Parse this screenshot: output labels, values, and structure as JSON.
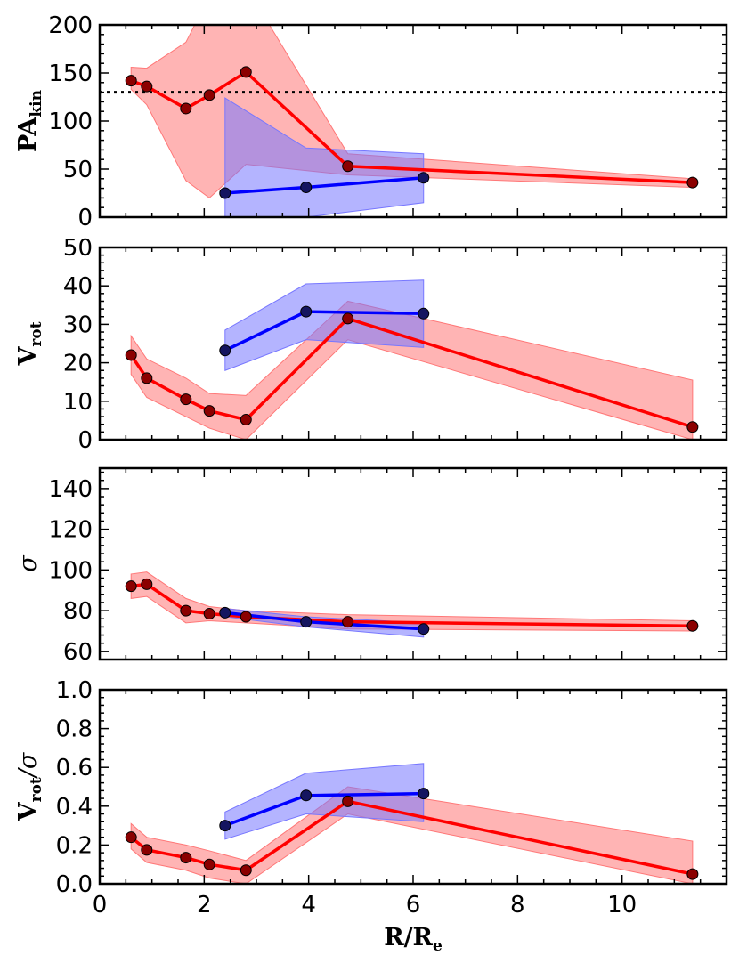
{
  "chart_data": [
    {
      "type": "line",
      "ylabel_main": "PA",
      "ylabel_sub": "kin",
      "xlim": [
        0,
        12
      ],
      "ylim": [
        0,
        200
      ],
      "yticks": [
        0,
        50,
        100,
        150,
        200
      ],
      "reference_line": 130,
      "series": [
        {
          "name": "red",
          "color": "#ff0000",
          "marker_color": "#8b0000",
          "fill_color": "#ff7777",
          "x": [
            0.6,
            0.9,
            1.65,
            2.1,
            2.8,
            4.75,
            11.35
          ],
          "values": [
            142,
            136,
            113,
            127,
            151,
            53,
            36
          ],
          "band_upper": [
            156,
            155,
            182,
            230,
            240,
            66,
            40
          ],
          "band_lower": [
            133,
            117,
            38,
            20,
            55,
            44,
            31
          ]
        },
        {
          "name": "blue",
          "color": "#0000ff",
          "marker_color": "#151560",
          "fill_color": "#7777ff",
          "x": [
            2.4,
            3.95,
            6.2
          ],
          "values": [
            25,
            31,
            41
          ],
          "band_upper": [
            124,
            72,
            66
          ],
          "band_lower": [
            0,
            0,
            15
          ]
        }
      ]
    },
    {
      "type": "line",
      "ylabel_main": "V",
      "ylabel_sub": "rot",
      "xlim": [
        0,
        12
      ],
      "ylim": [
        0,
        50
      ],
      "yticks": [
        0,
        10,
        20,
        30,
        40,
        50
      ],
      "series": [
        {
          "name": "red",
          "color": "#ff0000",
          "marker_color": "#8b0000",
          "fill_color": "#ff7777",
          "x": [
            0.6,
            0.9,
            1.65,
            2.1,
            2.8,
            4.75,
            11.35
          ],
          "values": [
            22,
            16,
            10.5,
            7.5,
            5.2,
            31.5,
            3.3
          ],
          "band_upper": [
            27,
            21,
            16,
            12,
            11.5,
            36,
            15.5
          ],
          "band_lower": [
            17,
            11,
            6,
            3,
            0,
            26,
            0
          ]
        },
        {
          "name": "blue",
          "color": "#0000ff",
          "marker_color": "#151560",
          "fill_color": "#7777ff",
          "x": [
            2.4,
            3.95,
            6.2
          ],
          "values": [
            23.2,
            33.3,
            32.8
          ],
          "band_upper": [
            28.5,
            40.5,
            41.5
          ],
          "band_lower": [
            18,
            26,
            24
          ]
        }
      ]
    },
    {
      "type": "line",
      "ylabel_main": "σ",
      "ylabel_sub": "",
      "xlim": [
        0,
        12
      ],
      "ylim": [
        56,
        150
      ],
      "yticks": [
        60,
        80,
        100,
        120,
        140
      ],
      "series": [
        {
          "name": "red",
          "color": "#ff0000",
          "marker_color": "#8b0000",
          "fill_color": "#ff7777",
          "x": [
            0.6,
            0.9,
            1.65,
            2.1,
            2.8,
            4.75,
            11.35
          ],
          "values": [
            92,
            93,
            80,
            78.5,
            77,
            74.5,
            72.5
          ],
          "band_upper": [
            98,
            99,
            86,
            82,
            80,
            78,
            75
          ],
          "band_lower": [
            86,
            87,
            74,
            75,
            74,
            71,
            70
          ]
        },
        {
          "name": "blue",
          "color": "#0000ff",
          "marker_color": "#151560",
          "fill_color": "#7777ff",
          "x": [
            2.4,
            3.95,
            6.2
          ],
          "values": [
            79,
            74.5,
            71
          ],
          "band_upper": [
            81,
            77,
            74
          ],
          "band_lower": [
            77,
            72,
            67
          ]
        }
      ]
    },
    {
      "type": "line",
      "ylabel_main": "V",
      "ylabel_sub": "rot",
      "ylabel_suffix": "/σ",
      "xlabel_main": "R/R",
      "xlabel_sub": "e",
      "xlim": [
        0,
        12
      ],
      "ylim": [
        0,
        1.0
      ],
      "yticks": [
        0.0,
        0.2,
        0.4,
        0.6,
        0.8,
        1.0
      ],
      "xticks": [
        0,
        2,
        4,
        6,
        8,
        10
      ],
      "series": [
        {
          "name": "red",
          "color": "#ff0000",
          "marker_color": "#8b0000",
          "fill_color": "#ff7777",
          "x": [
            0.6,
            0.9,
            1.65,
            2.1,
            2.8,
            4.75,
            11.35
          ],
          "values": [
            0.24,
            0.175,
            0.135,
            0.1,
            0.07,
            0.425,
            0.05
          ],
          "band_upper": [
            0.31,
            0.24,
            0.2,
            0.17,
            0.12,
            0.5,
            0.22
          ],
          "band_lower": [
            0.18,
            0.11,
            0.07,
            0.03,
            0.0,
            0.36,
            0.0
          ]
        },
        {
          "name": "blue",
          "color": "#0000ff",
          "marker_color": "#151560",
          "fill_color": "#7777ff",
          "x": [
            2.4,
            3.95,
            6.2
          ],
          "values": [
            0.3,
            0.455,
            0.465
          ],
          "band_upper": [
            0.37,
            0.57,
            0.62
          ],
          "band_lower": [
            0.23,
            0.36,
            0.32
          ]
        }
      ]
    }
  ]
}
